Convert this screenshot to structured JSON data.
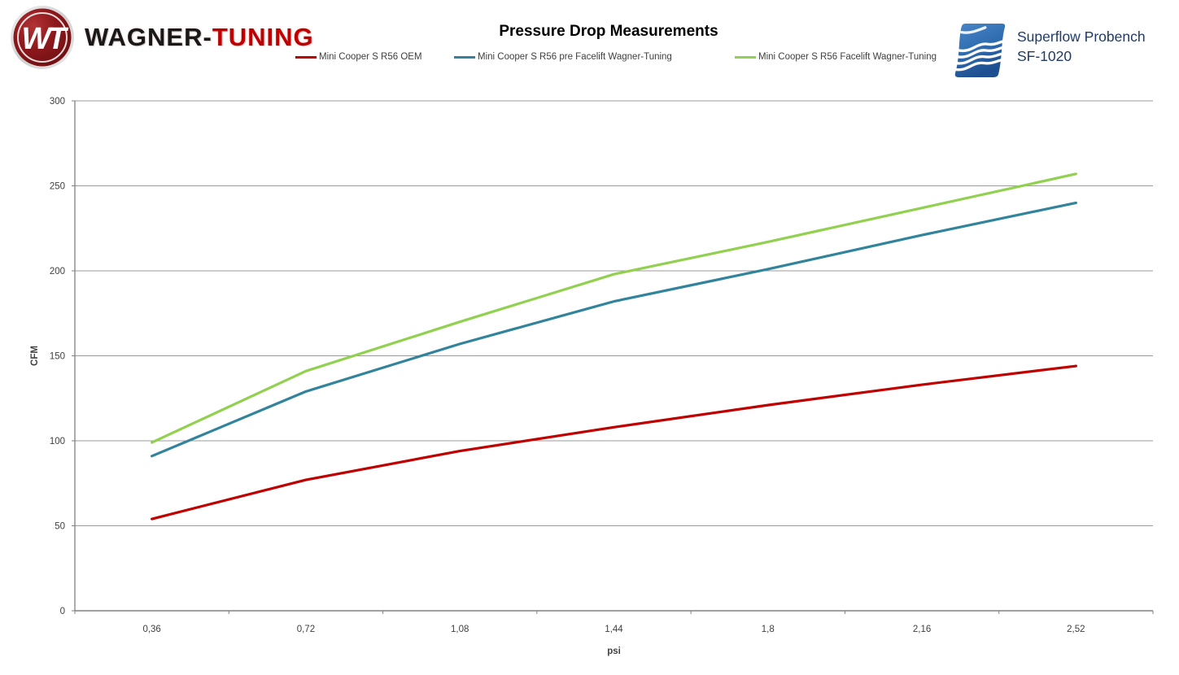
{
  "header": {
    "brand": {
      "badge_initials": "WT",
      "name_primary": "WAGNER-",
      "name_accent": "TUNING",
      "accent_color": "#c00000"
    },
    "bench": {
      "icon": "superflow-wave-icon",
      "line1": "Superflow Probench",
      "line2": "SF-1020",
      "text_color": "#1f3a68"
    }
  },
  "chart_data": {
    "type": "line",
    "title": "Pressure Drop Measurements",
    "xlabel": "psi",
    "ylabel": "CFM",
    "categories": [
      "0,36",
      "0,72",
      "1,08",
      "1,44",
      "1,8",
      "2,16",
      "2,52"
    ],
    "series": [
      {
        "name": "Mini Cooper S R56 OEM",
        "color": "#c00000",
        "values": [
          54,
          77,
          94,
          108,
          121,
          133,
          144
        ]
      },
      {
        "name": "Mini Cooper S R56 pre Facelift Wagner-Tuning",
        "color": "#31849b",
        "values": [
          91,
          129,
          157,
          182,
          201,
          221,
          240
        ]
      },
      {
        "name": "Mini Cooper S R56 Facelift Wagner-Tuning",
        "color": "#92d050",
        "values": [
          99,
          141,
          170,
          198,
          217,
          237,
          257
        ]
      }
    ],
    "ylim": [
      0,
      300
    ],
    "yticks": [
      0,
      50,
      100,
      150,
      200,
      250,
      300
    ],
    "grid": true,
    "legend_position": "top",
    "axis_color": "#808080",
    "grid_color": "#9b9b9b"
  }
}
